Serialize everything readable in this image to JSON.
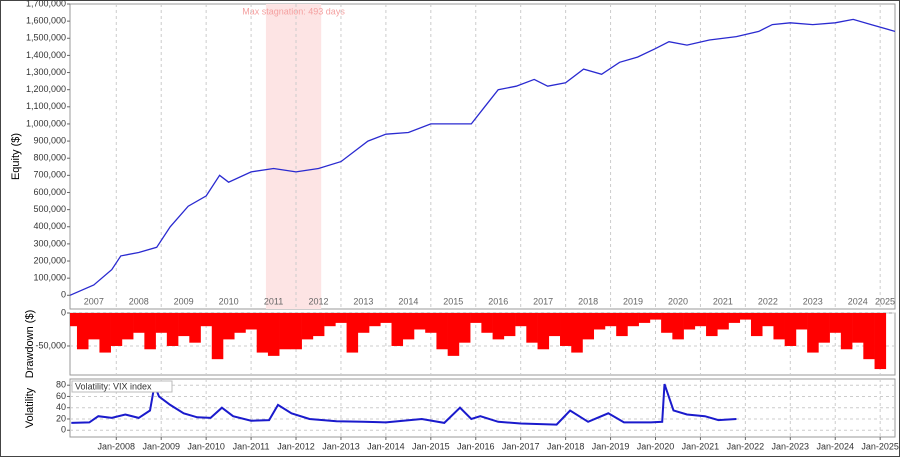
{
  "chart_data": [
    {
      "type": "line",
      "y_label": "Equity ($)",
      "color": "#2a2ad0",
      "xlim": [
        2006.97,
        2025.33
      ],
      "ylim": [
        -80000,
        1700000
      ],
      "grid": false,
      "stagnation": {
        "label": "Max stagnation: 493 days",
        "x": [
          2011.33,
          2012.56
        ],
        "color": "#fde4e4"
      },
      "xticks": [
        {
          "value": 2007.5,
          "label": "2007"
        },
        {
          "value": 2008.5,
          "label": "2008"
        },
        {
          "value": 2009.5,
          "label": "2009"
        },
        {
          "value": 2010.5,
          "label": "2010"
        },
        {
          "value": 2011.5,
          "label": "2011"
        },
        {
          "value": 2012.5,
          "label": "2012"
        },
        {
          "value": 2013.5,
          "label": "2013"
        },
        {
          "value": 2014.5,
          "label": "2014"
        },
        {
          "value": 2015.5,
          "label": "2015"
        },
        {
          "value": 2016.5,
          "label": "2016"
        },
        {
          "value": 2017.5,
          "label": "2017"
        },
        {
          "value": 2018.5,
          "label": "2018"
        },
        {
          "value": 2019.5,
          "label": "2019"
        },
        {
          "value": 2020.5,
          "label": "2020"
        },
        {
          "value": 2021.5,
          "label": "2021"
        },
        {
          "value": 2022.5,
          "label": "2022"
        },
        {
          "value": 2023.5,
          "label": "2023"
        },
        {
          "value": 2024.5,
          "label": "2024"
        },
        {
          "value": 2025.5,
          "label": "2025"
        }
      ],
      "yticks": [
        0,
        {
          "value": 100000,
          "label": "100,000"
        },
        {
          "value": 200000,
          "label": "200,000"
        },
        {
          "value": 300000,
          "label": "300,000"
        },
        {
          "value": 400000,
          "label": "400,000"
        },
        {
          "value": 500000,
          "label": "500,000"
        },
        {
          "value": 600000,
          "label": "600,000"
        },
        {
          "value": 700000,
          "label": "700,000"
        },
        {
          "value": 800000,
          "label": "800,000"
        },
        {
          "value": 900000,
          "label": "900,000"
        },
        {
          "value": 1000000,
          "label": "1,000,000"
        },
        {
          "value": 1100000,
          "label": "1,100,000"
        },
        {
          "value": 1200000,
          "label": "1,200,000"
        },
        {
          "value": 1300000,
          "label": "1,300,000"
        },
        {
          "value": 1400000,
          "label": "1,400,000"
        },
        {
          "value": 1500000,
          "label": "1,500,000"
        },
        {
          "value": 1600000,
          "label": "1,600,000"
        },
        {
          "value": 1700000,
          "label": "1,700,000"
        }
      ],
      "x": [
        2006.97,
        2007.5,
        2007.9,
        2008.1,
        2008.5,
        2008.9,
        2009.2,
        2009.6,
        2010.0,
        2010.3,
        2010.5,
        2011.0,
        2011.5,
        2012.0,
        2012.5,
        2013.0,
        2013.3,
        2013.6,
        2014.0,
        2014.5,
        2015.0,
        2015.5,
        2015.9,
        2016.2,
        2016.5,
        2016.9,
        2017.3,
        2017.6,
        2018.0,
        2018.4,
        2018.8,
        2019.2,
        2019.6,
        2020.0,
        2020.3,
        2020.7,
        2021.2,
        2021.8,
        2022.3,
        2022.6,
        2023.0,
        2023.5,
        2024.0,
        2024.4,
        2024.8,
        2025.33
      ],
      "values": [
        0,
        60000,
        150000,
        230000,
        250000,
        280000,
        400000,
        520000,
        580000,
        700000,
        660000,
        720000,
        740000,
        720000,
        740000,
        780000,
        840000,
        900000,
        940000,
        950000,
        1000000,
        1000000,
        1000000,
        1100000,
        1200000,
        1220000,
        1260000,
        1220000,
        1240000,
        1320000,
        1290000,
        1360000,
        1390000,
        1440000,
        1480000,
        1460000,
        1490000,
        1510000,
        1540000,
        1580000,
        1590000,
        1580000,
        1590000,
        1610000,
        1580000,
        1540000
      ]
    },
    {
      "type": "bar",
      "y_label": "Drawdown ($)",
      "color": "#ff0000",
      "xlim": [
        2006.97,
        2025.33
      ],
      "ylim": [
        -94000,
        0
      ],
      "grid": true,
      "yticks": [
        0,
        {
          "value": -50000,
          "label": "-50,000"
        }
      ],
      "x": [
        2007.0,
        2007.25,
        2007.5,
        2007.75,
        2008.0,
        2008.25,
        2008.5,
        2008.75,
        2009.0,
        2009.25,
        2009.5,
        2009.75,
        2010.0,
        2010.25,
        2010.5,
        2010.75,
        2011.0,
        2011.25,
        2011.5,
        2011.75,
        2012.0,
        2012.25,
        2012.5,
        2012.75,
        2013.0,
        2013.25,
        2013.5,
        2013.75,
        2014.0,
        2014.25,
        2014.5,
        2014.75,
        2015.0,
        2015.25,
        2015.5,
        2015.75,
        2016.0,
        2016.25,
        2016.5,
        2016.75,
        2017.0,
        2017.25,
        2017.5,
        2017.75,
        2018.0,
        2018.25,
        2018.5,
        2018.75,
        2019.0,
        2019.25,
        2019.5,
        2019.75,
        2020.0,
        2020.25,
        2020.5,
        2020.75,
        2021.0,
        2021.25,
        2021.5,
        2021.75,
        2022.0,
        2022.25,
        2022.5,
        2022.75,
        2023.0,
        2023.25,
        2023.5,
        2023.75,
        2024.0,
        2024.25,
        2024.5,
        2024.75,
        2025.0
      ],
      "values": [
        -20000,
        -55000,
        -40000,
        -60000,
        -50000,
        -40000,
        -30000,
        -55000,
        -30000,
        -50000,
        -35000,
        -45000,
        -20000,
        -70000,
        -40000,
        -30000,
        -25000,
        -60000,
        -65000,
        -55000,
        -55000,
        -40000,
        -35000,
        -20000,
        -15000,
        -60000,
        -30000,
        -20000,
        -15000,
        -50000,
        -40000,
        -25000,
        -30000,
        -55000,
        -65000,
        -45000,
        -15000,
        -30000,
        -40000,
        -35000,
        -20000,
        -45000,
        -55000,
        -35000,
        -50000,
        -60000,
        -40000,
        -25000,
        -20000,
        -35000,
        -20000,
        -15000,
        -10000,
        -30000,
        -40000,
        -25000,
        -20000,
        -35000,
        -25000,
        -15000,
        -10000,
        -35000,
        -20000,
        -40000,
        -50000,
        -25000,
        -60000,
        -45000,
        -30000,
        -55000,
        -45000,
        -70000,
        -85000
      ]
    },
    {
      "type": "line",
      "y_label": "Volatility",
      "xlim": [
        2006.97,
        2025.33
      ],
      "ylim": [
        -12,
        91
      ],
      "grid": true,
      "yticks": [
        0,
        20,
        40,
        60,
        80
      ],
      "xticks": [
        {
          "value": 2008,
          "label": "Jan-2008"
        },
        {
          "value": 2009,
          "label": "Jan-2009"
        },
        {
          "value": 2010,
          "label": "Jan-2010"
        },
        {
          "value": 2011,
          "label": "Jan-2011"
        },
        {
          "value": 2012,
          "label": "Jan-2012"
        },
        {
          "value": 2013,
          "label": "Jan-2013"
        },
        {
          "value": 2014,
          "label": "Jan-2014"
        },
        {
          "value": 2015,
          "label": "Jan-2015"
        },
        {
          "value": 2016,
          "label": "Jan-2016"
        },
        {
          "value": 2017,
          "label": "Jan-2017"
        },
        {
          "value": 2018,
          "label": "Jan-2018"
        },
        {
          "value": 2019,
          "label": "Jan-2019"
        },
        {
          "value": 2020,
          "label": "Jan-2020"
        },
        {
          "value": 2021,
          "label": "Jan-2021"
        },
        {
          "value": 2022,
          "label": "Jan-2022"
        },
        {
          "value": 2023,
          "label": "Jan-2023"
        },
        {
          "value": 2024,
          "label": "Jan-2024"
        },
        {
          "value": 2025,
          "label": "Jan-2025"
        }
      ],
      "x": [
        2007.0,
        2007.4,
        2007.6,
        2007.9,
        2008.2,
        2008.5,
        2008.75,
        2008.85,
        2008.95,
        2009.2,
        2009.5,
        2009.8,
        2010.1,
        2010.35,
        2010.6,
        2011.0,
        2011.4,
        2011.6,
        2011.9,
        2012.3,
        2012.9,
        2013.5,
        2014.0,
        2014.8,
        2015.3,
        2015.65,
        2015.9,
        2016.1,
        2016.5,
        2017.0,
        2017.8,
        2018.1,
        2018.5,
        2018.95,
        2019.3,
        2019.9,
        2020.15,
        2020.2,
        2020.4,
        2020.7,
        2021.1,
        2021.4,
        2021.8
      ],
      "series": [
        {
          "name": "Volatility: VIX index",
          "color": "#1a1acc",
          "values": [
            13,
            14,
            25,
            22,
            28,
            22,
            35,
            80,
            60,
            45,
            30,
            23,
            22,
            40,
            25,
            17,
            18,
            45,
            30,
            20,
            16,
            15,
            14,
            20,
            13,
            40,
            20,
            25,
            15,
            12,
            10,
            35,
            15,
            30,
            14,
            14,
            15,
            82,
            35,
            28,
            25,
            18,
            20
          ]
        }
      ]
    }
  ]
}
